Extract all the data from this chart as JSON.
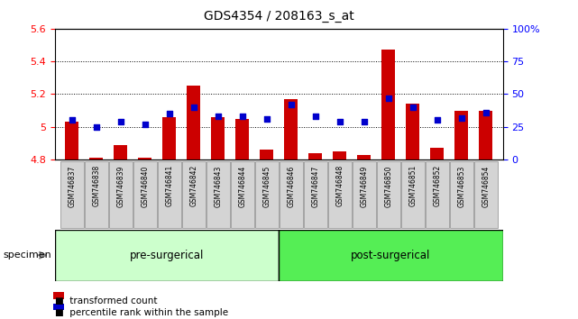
{
  "title": "GDS4354 / 208163_s_at",
  "samples": [
    "GSM746837",
    "GSM746838",
    "GSM746839",
    "GSM746840",
    "GSM746841",
    "GSM746842",
    "GSM746843",
    "GSM746844",
    "GSM746845",
    "GSM746846",
    "GSM746847",
    "GSM746848",
    "GSM746849",
    "GSM746850",
    "GSM746851",
    "GSM746852",
    "GSM746853",
    "GSM746854"
  ],
  "bar_values": [
    5.03,
    4.81,
    4.89,
    4.81,
    5.06,
    5.25,
    5.06,
    5.05,
    4.86,
    5.17,
    4.84,
    4.85,
    4.83,
    5.47,
    5.14,
    4.87,
    5.1,
    5.1
  ],
  "percentile_values": [
    30,
    25,
    29,
    27,
    35,
    40,
    33,
    33,
    31,
    42,
    33,
    29,
    29,
    47,
    40,
    30,
    32,
    36
  ],
  "ymin": 4.8,
  "ymax": 5.6,
  "yright_min": 0,
  "yright_max": 100,
  "yticks_left": [
    4.8,
    5.0,
    5.2,
    5.4,
    5.6
  ],
  "ytick_labels_left": [
    "4.8",
    "5",
    "5.2",
    "5.4",
    "5.6"
  ],
  "yticks_right": [
    0,
    25,
    50,
    75,
    100
  ],
  "ytick_labels_right": [
    "0",
    "25",
    "50",
    "75",
    "100%"
  ],
  "bar_color": "#cc0000",
  "dot_color": "#0000cc",
  "pre_surgical_count": 9,
  "post_surgical_count": 9,
  "pre_label": "pre-surgerical",
  "post_label": "post-surgerical",
  "pre_color": "#ccffcc",
  "post_color": "#55ee55",
  "specimen_label": "specimen",
  "legend1": "transformed count",
  "legend2": "percentile rank within the sample",
  "bg_color": "#ffffff",
  "plot_bg": "#ffffff",
  "tick_bg": "#d4d4d4",
  "grid_color": "#000000",
  "title_fontsize": 10,
  "axis_fontsize": 8,
  "tick_fontsize": 7
}
